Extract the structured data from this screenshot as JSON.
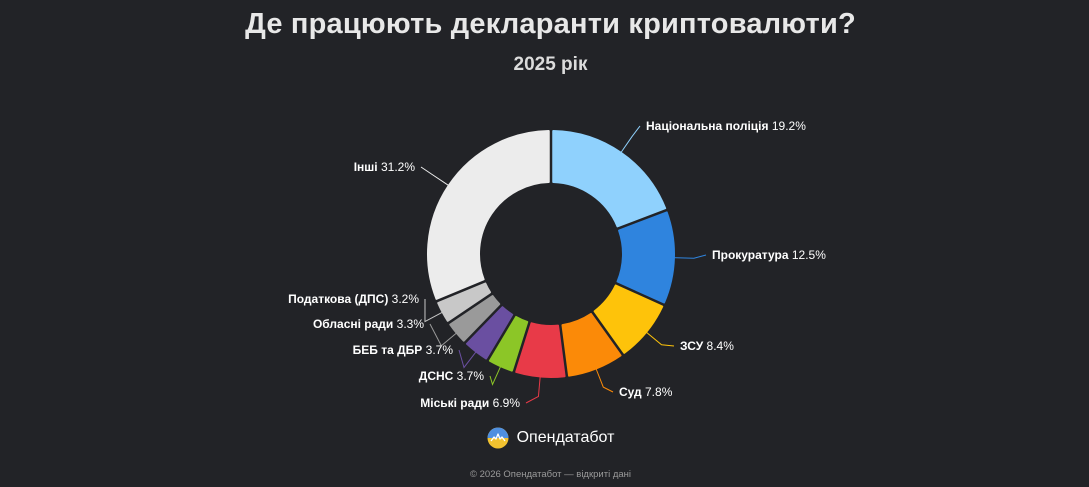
{
  "header": {
    "title": "Де працюють декларанти криптовалюти?",
    "subtitle": "2025 рік"
  },
  "chart_data": {
    "type": "pie",
    "variant": "donut",
    "title": "Де працюють декларанти криптовалюти?",
    "subtitle": "2025 рік",
    "unit": "%",
    "slices": [
      {
        "label": "Національна поліція",
        "value": 19.2,
        "value_text": "19.2%",
        "color": "#8fd1fd"
      },
      {
        "label": "Прокуратура",
        "value": 12.5,
        "value_text": "12.5%",
        "color": "#2f84de"
      },
      {
        "label": "ЗСУ",
        "value": 8.4,
        "value_text": "8.4%",
        "color": "#fec30a"
      },
      {
        "label": "Суд",
        "value": 7.8,
        "value_text": "7.8%",
        "color": "#fb8a08"
      },
      {
        "label": "Міські ради",
        "value": 6.9,
        "value_text": "6.9%",
        "color": "#e83a48"
      },
      {
        "label": "ДСНС",
        "value": 3.7,
        "value_text": "3.7%",
        "color": "#8cc627"
      },
      {
        "label": "БЕБ та ДБР",
        "value": 3.7,
        "value_text": "3.7%",
        "color": "#6a4fa1"
      },
      {
        "label": "Обласні ради",
        "value": 3.3,
        "value_text": "3.3%",
        "color": "#9a9a9a"
      },
      {
        "label": "Податкова (ДПС)",
        "value": 3.2,
        "value_text": "3.2%",
        "color": "#c8c8c8"
      },
      {
        "label": "Інші",
        "value": 31.2,
        "value_text": "31.2%",
        "color": "#ececec"
      }
    ]
  },
  "brand": {
    "name": "Опендатабот",
    "logo_icon": "opendatabot-logo-icon"
  },
  "footer": {
    "text": "© 2026 Опендатабот — відкриті дані"
  }
}
